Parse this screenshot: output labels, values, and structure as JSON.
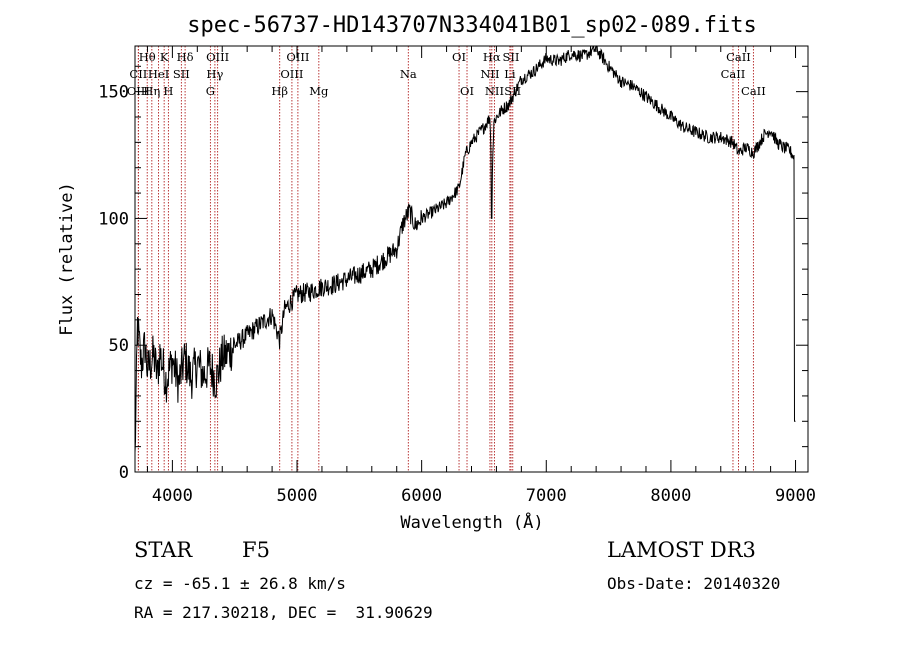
{
  "chart_data": {
    "type": "line",
    "title": "spec-56737-HD143707N334041B01_sp02-089.fits",
    "xlabel": "Wavelength (Å)",
    "ylabel": "Flux (relative)",
    "xlim": [
      3700,
      9100
    ],
    "ylim": [
      0,
      168
    ],
    "xticks": [
      4000,
      5000,
      6000,
      7000,
      8000,
      9000
    ],
    "yticks": [
      0,
      50,
      100,
      150
    ],
    "grid": false,
    "series": [
      {
        "name": "flux",
        "x": [
          3700,
          3720,
          3750,
          3780,
          3800,
          3850,
          3880,
          3900,
          3950,
          4000,
          4050,
          4100,
          4150,
          4200,
          4250,
          4300,
          4350,
          4400,
          4450,
          4500,
          4600,
          4700,
          4800,
          4861,
          4900,
          5000,
          5100,
          5200,
          5300,
          5400,
          5500,
          5600,
          5700,
          5800,
          5850,
          5900,
          5950,
          6000,
          6100,
          6200,
          6300,
          6350,
          6400,
          6450,
          6500,
          6550,
          6563,
          6580,
          6600,
          6650,
          6700,
          6750,
          6800,
          6900,
          7000,
          7100,
          7200,
          7300,
          7400,
          7500,
          7600,
          7700,
          7800,
          7900,
          8000,
          8100,
          8200,
          8300,
          8400,
          8498,
          8542,
          8600,
          8662,
          8700,
          8750,
          8800,
          8850,
          8900,
          8950,
          8990,
          9000
        ],
        "y": [
          5,
          58,
          42,
          50,
          40,
          46,
          38,
          47,
          36,
          44,
          35,
          45,
          37,
          43,
          38,
          42,
          36,
          45,
          47,
          50,
          54,
          58,
          62,
          52,
          64,
          70,
          71,
          73,
          74,
          76,
          78,
          80,
          84,
          88,
          98,
          103,
          97,
          100,
          103,
          106,
          112,
          125,
          130,
          133,
          136,
          140,
          112,
          138,
          140,
          143,
          145,
          150,
          155,
          158,
          163,
          162,
          165,
          164,
          167,
          160,
          154,
          152,
          148,
          144,
          140,
          136,
          134,
          132,
          132,
          130,
          126,
          128,
          126,
          129,
          133,
          135,
          130,
          128,
          127,
          124,
          20
        ]
      }
    ],
    "lines": [
      {
        "name": "Hθ",
        "x": 3798,
        "row": 1
      },
      {
        "name": "CII",
        "x": 3727,
        "row": 2
      },
      {
        "name": "OIII",
        "x": 3727,
        "row": 3
      },
      {
        "name": "Hη",
        "x": 3835,
        "row": 3
      },
      {
        "name": "HeI",
        "x": 3889,
        "row": 2
      },
      {
        "name": "K",
        "x": 3934,
        "row": 1
      },
      {
        "name": "H",
        "x": 3968,
        "row": 3
      },
      {
        "name": "Hδ",
        "x": 4102,
        "row": 1
      },
      {
        "name": "SII",
        "x": 4072,
        "row": 2
      },
      {
        "name": "OIII",
        "x": 4363,
        "row": 1
      },
      {
        "name": "Hγ",
        "x": 4341,
        "row": 2
      },
      {
        "name": "G",
        "x": 4305,
        "row": 3
      },
      {
        "name": "Hβ",
        "x": 4861,
        "row": 3
      },
      {
        "name": "OIII",
        "x": 4959,
        "row": 2
      },
      {
        "name": "OIII",
        "x": 5007,
        "row": 1
      },
      {
        "name": "Mg",
        "x": 5175,
        "row": 3
      },
      {
        "name": "Na",
        "x": 5893,
        "row": 2
      },
      {
        "name": "OI",
        "x": 6300,
        "row": 1
      },
      {
        "name": "OI",
        "x": 6364,
        "row": 3
      },
      {
        "name": "Hα",
        "x": 6563,
        "row": 1
      },
      {
        "name": "NII",
        "x": 6548,
        "row": 2
      },
      {
        "name": "NII",
        "x": 6584,
        "row": 3
      },
      {
        "name": "SII",
        "x": 6717,
        "row": 1
      },
      {
        "name": "Li",
        "x": 6708,
        "row": 2
      },
      {
        "name": "SII",
        "x": 6731,
        "row": 3
      },
      {
        "name": "CaII",
        "x": 8498,
        "row": 2
      },
      {
        "name": "CaII",
        "x": 8542,
        "row": 1
      },
      {
        "name": "CaII",
        "x": 8662,
        "row": 3
      }
    ]
  },
  "info": {
    "class": "STAR",
    "subclass": "F5",
    "survey": "LAMOST DR3",
    "cz": "cz = -65.1 ± 26.8 km/s",
    "obs_date": "Obs-Date: 20140320",
    "coords": "RA = 217.30218, DEC =  31.90629"
  },
  "colors": {
    "line_marker": "#b22222",
    "spectrum": "#000000"
  }
}
